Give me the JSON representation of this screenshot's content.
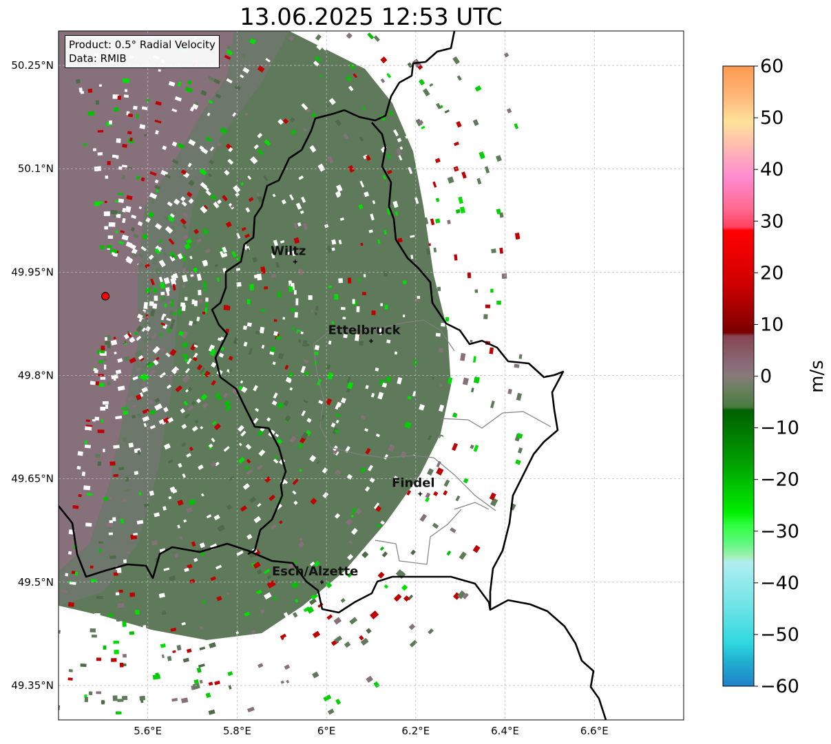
{
  "title": "13.06.2025 12:53 UTC",
  "info": {
    "product": "Product: 0.5° Radial Velocity",
    "data": "Data: RMIB"
  },
  "map": {
    "lat_ticks": [
      "50.25°N",
      "50.1°N",
      "49.95°N",
      "49.8°N",
      "49.65°N",
      "49.5°N",
      "49.35°N"
    ],
    "lon_ticks": [
      "5.6°E",
      "5.8°E",
      "6°E",
      "6.2°E",
      "6.4°E",
      "6.6°E"
    ],
    "extent": {
      "lon_min": 5.4,
      "lon_max": 6.8,
      "lat_min": 49.3,
      "lat_max": 50.3
    },
    "cities": [
      {
        "name": "Wiltz",
        "lon": 5.93,
        "lat": 49.965
      },
      {
        "name": "Ettelbruck",
        "lon": 6.1,
        "lat": 49.85
      },
      {
        "name": "Findel",
        "lon": 6.21,
        "lat": 49.628
      },
      {
        "name": "Esch/Alzette",
        "lon": 5.99,
        "lat": 49.5
      }
    ],
    "radar_site": {
      "lon": 5.505,
      "lat": 49.915
    },
    "colors": {
      "border": "#000000",
      "district_lines": "#808080",
      "grid": "#bbbbbb",
      "radar_marker": "#ff0000",
      "velocity_approaching_dominant": "#5f7a5a",
      "velocity_receding_dominant": "#86707a"
    }
  },
  "colorbar": {
    "label": "m/s",
    "ticks": [
      "60",
      "50",
      "40",
      "30",
      "20",
      "10",
      "0",
      "−10",
      "−20",
      "−30",
      "−40",
      "−50",
      "−60"
    ],
    "range": [
      -60,
      60
    ],
    "stops": [
      {
        "from": 55,
        "color": "#ff9a50"
      },
      {
        "from": 50,
        "color": "#ffb87a"
      },
      {
        "from": 45,
        "color": "#ffe29a"
      },
      {
        "from": 40,
        "color": "#ff9ad0"
      },
      {
        "from": 35,
        "color": "#ff6aa0"
      },
      {
        "from": 28,
        "color": "#ff4060"
      },
      {
        "from": 20,
        "color": "#ff0000"
      },
      {
        "from": 15,
        "color": "#c00000"
      },
      {
        "from": 8,
        "color": "#7a0000"
      },
      {
        "from": 4,
        "color": "#885060"
      },
      {
        "from": 1,
        "color": "#887078"
      },
      {
        "from": -2,
        "color": "#6a8060"
      },
      {
        "from": -6,
        "color": "#4a7a40"
      },
      {
        "from": -14,
        "color": "#006000"
      },
      {
        "from": -20,
        "color": "#00a000"
      },
      {
        "from": -28,
        "color": "#00ee00"
      },
      {
        "from": -32,
        "color": "#60ff70"
      },
      {
        "from": -36,
        "color": "#a0f0b0"
      },
      {
        "from": -42,
        "color": "#b0f0f0"
      },
      {
        "from": -48,
        "color": "#60e0e0"
      },
      {
        "from": -54,
        "color": "#30d8e0"
      },
      {
        "from": -60,
        "color": "#2090c8"
      }
    ]
  }
}
